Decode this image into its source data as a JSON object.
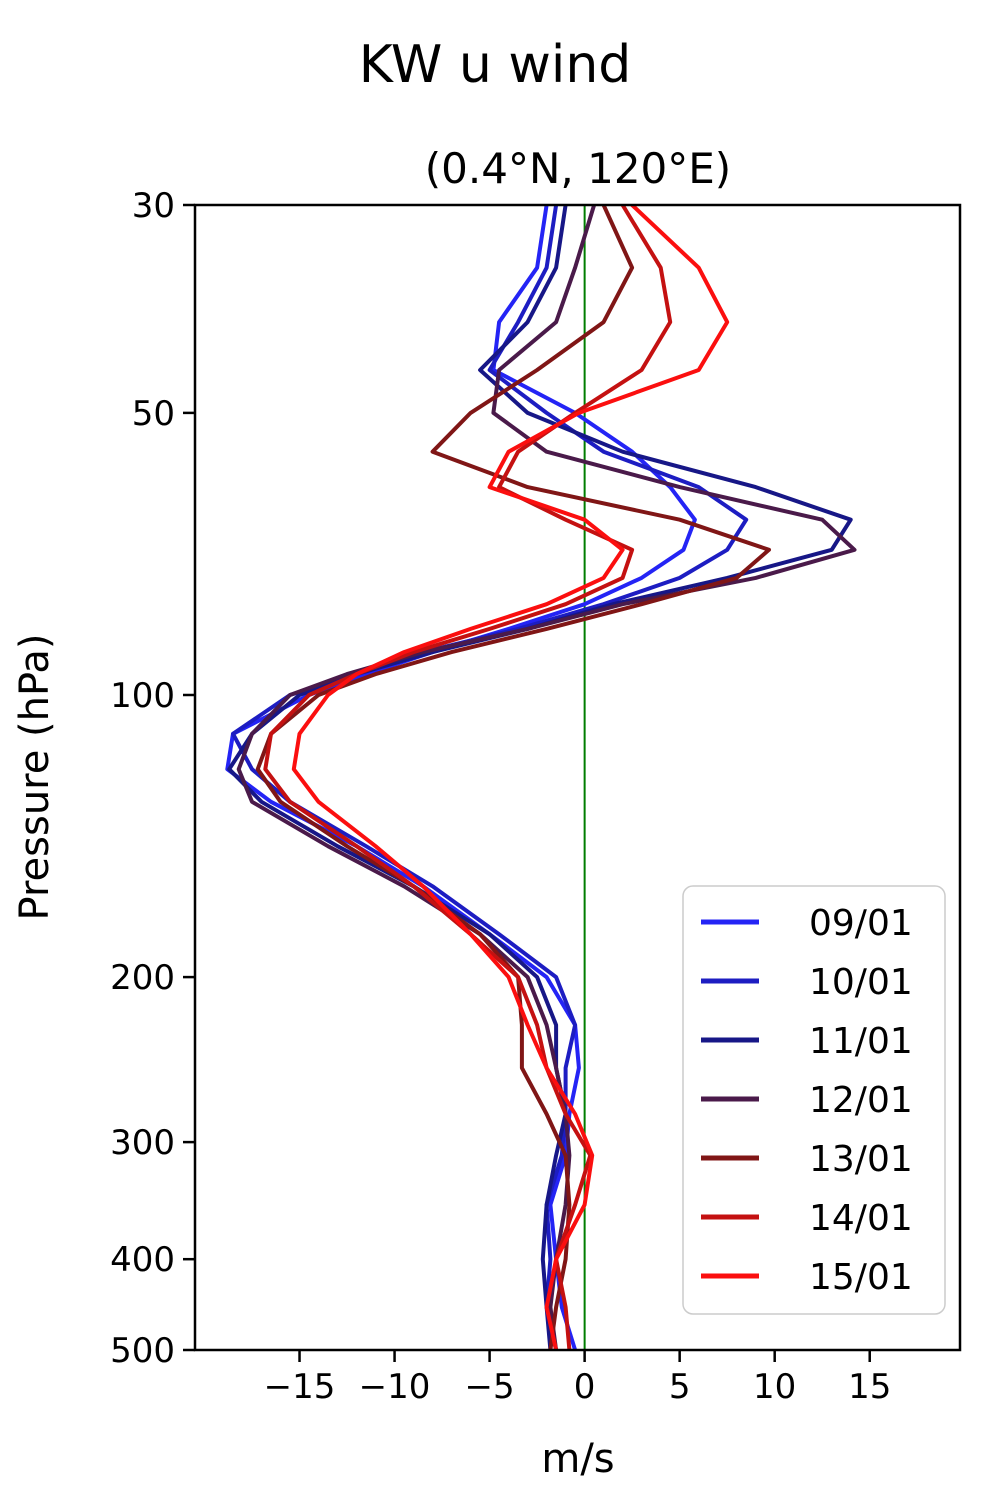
{
  "figure": {
    "title": "KW u wind",
    "subtitle": "(0.4°N, 120°E)"
  },
  "chart_data": {
    "type": "line",
    "title": "KW u wind",
    "subtitle": "(0.4°N, 120°E)",
    "xlabel": "m/s",
    "ylabel": "Pressure (hPa)",
    "xlim": [
      -20.5,
      19.75
    ],
    "ylim": [
      500,
      30
    ],
    "yscale": "log",
    "y_axis_inverted": true,
    "x_ticks": [
      -15,
      -10,
      -5,
      0,
      5,
      10,
      15
    ],
    "y_ticks": [
      30,
      50,
      100,
      200,
      300,
      400,
      500
    ],
    "grid": false,
    "legend_position": "lower right",
    "zero_line": {
      "x": 0,
      "color": "#007d00"
    },
    "pressure_levels": [
      30,
      35,
      40,
      45,
      50,
      55,
      60,
      65,
      70,
      75,
      80,
      85,
      90,
      95,
      100,
      110,
      120,
      130,
      145,
      160,
      180,
      200,
      225,
      250,
      280,
      310,
      350,
      400,
      450,
      500
    ],
    "series": [
      {
        "name": "09/01",
        "color": "#2424f5",
        "values": [
          -2.0,
          -2.5,
          -4.5,
          -4.8,
          -0.5,
          2.5,
          4.5,
          5.8,
          5.2,
          3.0,
          0.0,
          -4.0,
          -8.0,
          -11.5,
          -14.5,
          -18.5,
          -18.8,
          -16.5,
          -12.0,
          -8.5,
          -5.0,
          -2.0,
          -0.5,
          -0.3,
          -0.8,
          -1.0,
          -1.8,
          -1.5,
          -1.2,
          -0.5
        ]
      },
      {
        "name": "10/01",
        "color": "#1d1dc2",
        "values": [
          -1.5,
          -2.0,
          -3.5,
          -5.0,
          -2.0,
          1.0,
          6.0,
          8.5,
          7.5,
          5.0,
          1.0,
          -3.5,
          -8.5,
          -12.0,
          -15.5,
          -18.5,
          -17.5,
          -15.5,
          -11.5,
          -8.0,
          -4.5,
          -1.5,
          -0.5,
          -1.0,
          -1.0,
          -1.2,
          -2.0,
          -1.8,
          -2.0,
          -1.5
        ]
      },
      {
        "name": "11/01",
        "color": "#171787",
        "values": [
          -1.0,
          -1.5,
          -3.0,
          -5.5,
          -3.0,
          2.0,
          9.0,
          14.0,
          13.0,
          7.5,
          1.5,
          -3.0,
          -8.0,
          -12.0,
          -15.0,
          -17.5,
          -18.7,
          -17.0,
          -13.0,
          -9.0,
          -5.0,
          -2.5,
          -1.5,
          -1.5,
          -1.0,
          -1.5,
          -2.0,
          -2.2,
          -2.0,
          -1.8
        ]
      },
      {
        "name": "12/01",
        "color": "#4a1a4a",
        "values": [
          0.5,
          -0.5,
          -1.5,
          -4.5,
          -4.8,
          -2.0,
          5.0,
          12.5,
          14.2,
          9.0,
          2.0,
          -3.0,
          -8.5,
          -12.5,
          -15.5,
          -17.5,
          -18.2,
          -17.5,
          -13.5,
          -9.5,
          -5.5,
          -3.0,
          -2.0,
          -1.5,
          -1.0,
          -0.8,
          -1.0,
          -1.5,
          -1.8,
          -1.5
        ]
      },
      {
        "name": "13/01",
        "color": "#801616",
        "values": [
          1.0,
          2.5,
          1.0,
          -2.5,
          -6.0,
          -8.0,
          -3.0,
          5.0,
          9.7,
          8.0,
          3.0,
          -2.0,
          -7.0,
          -11.0,
          -14.0,
          -16.5,
          -17.2,
          -16.0,
          -12.5,
          -9.0,
          -5.5,
          -3.5,
          -3.3,
          -3.3,
          -2.0,
          -1.0,
          -0.8,
          -1.0,
          -1.5,
          -1.8
        ]
      },
      {
        "name": "14/01",
        "color": "#c41111",
        "values": [
          2.0,
          4.0,
          4.5,
          3.0,
          -0.5,
          -3.5,
          -4.5,
          -1.0,
          2.5,
          2.0,
          -1.0,
          -5.0,
          -9.0,
          -12.0,
          -14.5,
          -16.5,
          -16.8,
          -15.5,
          -12.0,
          -9.0,
          -6.0,
          -3.5,
          -2.5,
          -2.0,
          -1.0,
          0.3,
          -0.5,
          -1.5,
          -1.0,
          -0.8
        ]
      },
      {
        "name": "15/01",
        "color": "#fb0f0f",
        "values": [
          2.5,
          6.0,
          7.5,
          6.0,
          -0.3,
          -4.0,
          -5.0,
          0.0,
          2.0,
          1.0,
          -2.0,
          -6.0,
          -9.5,
          -12.0,
          -13.5,
          -15.0,
          -15.3,
          -14.0,
          -11.0,
          -8.5,
          -6.0,
          -4.0,
          -3.0,
          -2.0,
          -0.5,
          0.4,
          0.0,
          -1.5,
          -2.0,
          -1.5
        ]
      }
    ]
  }
}
